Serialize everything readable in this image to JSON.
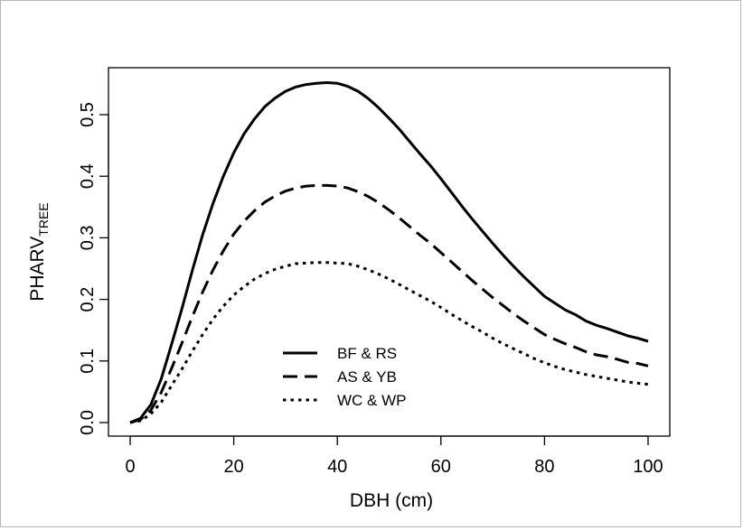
{
  "chart_data": {
    "type": "line",
    "title": "",
    "xlabel": "DBH (cm)",
    "ylabel": {
      "main": "PHARV",
      "subscript": "TREE"
    },
    "xlim": [
      0,
      100
    ],
    "ylim": [
      0.0,
      0.55
    ],
    "xticks": [
      "0",
      "20",
      "40",
      "60",
      "80",
      "100"
    ],
    "yticks": [
      "0.0",
      "0.1",
      "0.2",
      "0.3",
      "0.4",
      "0.5"
    ],
    "grid": false,
    "legend_position": "bottom-center",
    "x": [
      0,
      2,
      4,
      6,
      8,
      10,
      12,
      14,
      16,
      18,
      20,
      22,
      24,
      26,
      28,
      30,
      32,
      34,
      36,
      38,
      40,
      42,
      44,
      46,
      48,
      50,
      52,
      54,
      56,
      58,
      60,
      62,
      64,
      66,
      68,
      70,
      72,
      74,
      76,
      78,
      80,
      82,
      84,
      86,
      88,
      90,
      92,
      94,
      96,
      98,
      100
    ],
    "series": [
      {
        "name": "BF & RS",
        "line_style": "solid",
        "values": [
          0.0,
          0.007,
          0.029,
          0.071,
          0.127,
          0.185,
          0.247,
          0.305,
          0.356,
          0.4,
          0.438,
          0.469,
          0.493,
          0.513,
          0.527,
          0.538,
          0.545,
          0.549,
          0.551,
          0.552,
          0.551,
          0.546,
          0.538,
          0.526,
          0.511,
          0.494,
          0.476,
          0.456,
          0.436,
          0.417,
          0.396,
          0.374,
          0.352,
          0.331,
          0.311,
          0.291,
          0.272,
          0.254,
          0.237,
          0.221,
          0.205,
          0.194,
          0.183,
          0.175,
          0.165,
          0.158,
          0.153,
          0.147,
          0.141,
          0.137,
          0.132
        ]
      },
      {
        "name": "AS & YB",
        "line_style": "dashed",
        "values": [
          0.0,
          0.005,
          0.02,
          0.049,
          0.088,
          0.129,
          0.172,
          0.212,
          0.248,
          0.279,
          0.306,
          0.327,
          0.344,
          0.358,
          0.368,
          0.376,
          0.381,
          0.384,
          0.385,
          0.385,
          0.384,
          0.381,
          0.375,
          0.367,
          0.357,
          0.345,
          0.332,
          0.318,
          0.304,
          0.291,
          0.276,
          0.261,
          0.246,
          0.231,
          0.217,
          0.203,
          0.19,
          0.177,
          0.165,
          0.154,
          0.143,
          0.135,
          0.128,
          0.122,
          0.115,
          0.11,
          0.107,
          0.103,
          0.098,
          0.096,
          0.092
        ]
      },
      {
        "name": "WC & WP",
        "line_style": "dotted",
        "values": [
          0.0,
          0.003,
          0.014,
          0.033,
          0.06,
          0.087,
          0.116,
          0.143,
          0.168,
          0.189,
          0.207,
          0.221,
          0.233,
          0.242,
          0.249,
          0.254,
          0.258,
          0.259,
          0.26,
          0.26,
          0.259,
          0.258,
          0.254,
          0.248,
          0.241,
          0.233,
          0.224,
          0.215,
          0.206,
          0.197,
          0.187,
          0.176,
          0.166,
          0.156,
          0.147,
          0.137,
          0.128,
          0.12,
          0.112,
          0.104,
          0.097,
          0.091,
          0.086,
          0.082,
          0.078,
          0.075,
          0.072,
          0.069,
          0.066,
          0.064,
          0.062
        ]
      }
    ]
  }
}
